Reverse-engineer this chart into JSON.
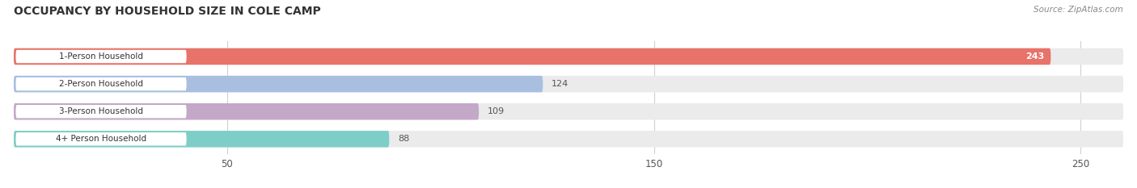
{
  "title": "OCCUPANCY BY HOUSEHOLD SIZE IN COLE CAMP",
  "source": "Source: ZipAtlas.com",
  "categories": [
    "1-Person Household",
    "2-Person Household",
    "3-Person Household",
    "4+ Person Household"
  ],
  "values": [
    243,
    124,
    109,
    88
  ],
  "bar_colors": [
    "#E8736A",
    "#A8BFE0",
    "#C4A8C8",
    "#7ECEC8"
  ],
  "bar_bg_color": "#EBEBEB",
  "xlim": [
    0,
    260
  ],
  "xticks": [
    50,
    150,
    250
  ],
  "figsize": [
    14.06,
    2.33
  ],
  "dpi": 100,
  "bar_height": 0.6,
  "background_color": "#ffffff",
  "grid_color": "#d0d0d0",
  "label_bg_color": "#ffffff"
}
